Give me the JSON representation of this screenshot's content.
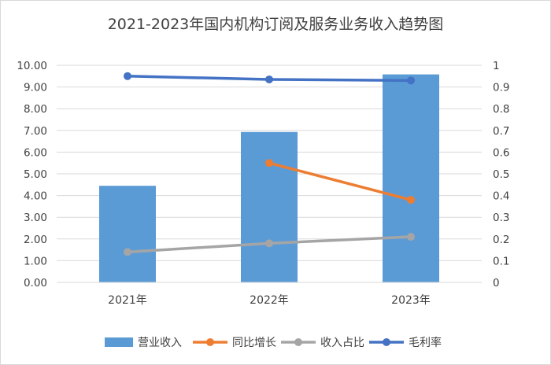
{
  "chart_data": {
    "type": "bar+line",
    "title": "2021-2023年国内机构订阅及服务业务收入趋势图",
    "categories": [
      "2021年",
      "2022年",
      "2023年"
    ],
    "y_left": {
      "min": 0,
      "max": 10,
      "step": 1,
      "tick_labels": [
        "0.00",
        "1.00",
        "2.00",
        "3.00",
        "4.00",
        "5.00",
        "6.00",
        "7.00",
        "8.00",
        "9.00",
        "10.00"
      ]
    },
    "y_right": {
      "min": 0,
      "max": 1,
      "step": 0.1,
      "tick_labels": [
        "0",
        "0.1",
        "0.2",
        "0.3",
        "0.4",
        "0.5",
        "0.6",
        "0.7",
        "0.8",
        "0.9",
        "1"
      ]
    },
    "bars": {
      "name": "营业收入",
      "axis": "left",
      "color": "#5b9bd5",
      "values": [
        4.45,
        6.93,
        9.58
      ]
    },
    "lines": [
      {
        "name": "同比增长",
        "axis": "right",
        "color": "#ed7d31",
        "values": [
          null,
          0.55,
          0.38
        ]
      },
      {
        "name": "收入占比",
        "axis": "right",
        "color": "#a5a5a5",
        "values": [
          0.14,
          0.18,
          0.21
        ]
      },
      {
        "name": "毛利率",
        "axis": "right",
        "color": "#4472c4",
        "values": [
          0.95,
          0.935,
          0.93
        ]
      }
    ],
    "legend": {
      "position": "bottom",
      "entries": [
        "营业收入",
        "同比增长",
        "收入占比",
        "毛利率"
      ]
    }
  }
}
